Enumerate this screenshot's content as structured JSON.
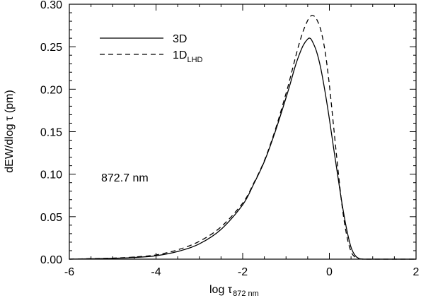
{
  "chart_data": {
    "type": "line",
    "xlabel": "log τ",
    "xlabel_sub": "872 nm",
    "ylabel": "dEW/dlog τ (pm)",
    "xlim": [
      -6,
      2
    ],
    "ylim": [
      0,
      0.3
    ],
    "xticks": [
      -6,
      -4,
      -2,
      0,
      2
    ],
    "xtick_labels": [
      "-6",
      "-4",
      "-2",
      "0",
      "2"
    ],
    "yticks": [
      0,
      0.05,
      0.1,
      0.15,
      0.2,
      0.25,
      0.3
    ],
    "ytick_labels": [
      "0.00",
      "0.05",
      "0.10",
      "0.15",
      "0.20",
      "0.25",
      "0.30"
    ],
    "grid": false,
    "legend_position": "top-left",
    "annotation": "872.7 nm",
    "series": [
      {
        "name": "3D",
        "line_style": "solid",
        "color": "#000000",
        "x": [
          -6.0,
          -5.5,
          -5.0,
          -4.5,
          -4.0,
          -3.5,
          -3.0,
          -2.5,
          -2.0,
          -1.75,
          -1.5,
          -1.25,
          -1.0,
          -0.9,
          -0.8,
          -0.7,
          -0.6,
          -0.5,
          -0.45,
          -0.4,
          -0.3,
          -0.2,
          -0.1,
          0.0,
          0.1,
          0.2,
          0.3,
          0.4,
          0.5,
          0.6,
          0.7,
          0.8,
          1.0,
          2.0
        ],
        "values": [
          0.0,
          0.0005,
          0.001,
          0.002,
          0.004,
          0.009,
          0.018,
          0.035,
          0.064,
          0.088,
          0.115,
          0.15,
          0.19,
          0.207,
          0.225,
          0.24,
          0.252,
          0.259,
          0.26,
          0.257,
          0.245,
          0.225,
          0.197,
          0.165,
          0.13,
          0.096,
          0.063,
          0.035,
          0.014,
          0.004,
          0.0005,
          0.0,
          0.0,
          0.0
        ]
      },
      {
        "name": "1D",
        "name_sub": "LHD",
        "line_style": "dashed",
        "color": "#000000",
        "x": [
          -6.0,
          -5.5,
          -5.0,
          -4.5,
          -4.0,
          -3.5,
          -3.0,
          -2.5,
          -2.0,
          -1.75,
          -1.5,
          -1.25,
          -1.0,
          -0.9,
          -0.8,
          -0.7,
          -0.6,
          -0.5,
          -0.45,
          -0.4,
          -0.35,
          -0.3,
          -0.2,
          -0.1,
          0.0,
          0.1,
          0.2,
          0.3,
          0.4,
          0.5,
          0.6,
          0.7,
          0.8,
          1.0,
          2.0
        ],
        "values": [
          0.0,
          0.0006,
          0.0012,
          0.0025,
          0.005,
          0.011,
          0.021,
          0.038,
          0.066,
          0.089,
          0.116,
          0.152,
          0.195,
          0.214,
          0.234,
          0.253,
          0.269,
          0.281,
          0.285,
          0.287,
          0.286,
          0.283,
          0.27,
          0.245,
          0.205,
          0.155,
          0.105,
          0.06,
          0.028,
          0.009,
          0.002,
          0.0002,
          0.0,
          0.0,
          0.0
        ]
      }
    ]
  }
}
